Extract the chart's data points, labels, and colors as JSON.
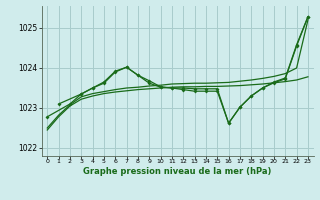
{
  "title": "Graphe pression niveau de la mer (hPa)",
  "bg_color": "#d0ecec",
  "grid_color": "#a8cccc",
  "line_color": "#1a6b1a",
  "xlim": [
    -0.5,
    23.5
  ],
  "ylim": [
    1021.8,
    1025.55
  ],
  "yticks": [
    1022,
    1023,
    1024,
    1025
  ],
  "xticks": [
    0,
    1,
    2,
    3,
    4,
    5,
    6,
    7,
    8,
    9,
    10,
    11,
    12,
    13,
    14,
    15,
    16,
    17,
    18,
    19,
    20,
    21,
    22,
    23
  ],
  "series1_x": [
    0,
    1,
    2,
    3,
    4,
    5,
    6,
    7,
    8,
    9,
    10,
    11,
    12,
    13,
    14,
    15,
    16,
    17,
    18,
    19,
    20,
    21,
    22,
    23
  ],
  "series1_y": [
    1022.45,
    1022.78,
    1023.05,
    1023.22,
    1023.3,
    1023.36,
    1023.4,
    1023.43,
    1023.46,
    1023.48,
    1023.5,
    1023.52,
    1023.53,
    1023.53,
    1023.54,
    1023.54,
    1023.55,
    1023.56,
    1023.58,
    1023.6,
    1023.63,
    1023.66,
    1023.7,
    1023.78
  ],
  "series2_x": [
    0,
    1,
    2,
    3,
    4,
    5,
    6,
    7,
    8,
    9,
    10,
    11,
    12,
    13,
    14,
    15,
    16,
    17,
    18,
    19,
    20,
    21,
    22,
    23
  ],
  "series2_y": [
    1022.5,
    1022.82,
    1023.08,
    1023.28,
    1023.36,
    1023.41,
    1023.46,
    1023.5,
    1023.52,
    1023.55,
    1023.57,
    1023.6,
    1023.61,
    1023.62,
    1023.62,
    1023.63,
    1023.64,
    1023.67,
    1023.7,
    1023.74,
    1023.79,
    1023.86,
    1024.0,
    1025.2
  ],
  "series3_x": [
    0,
    2,
    3,
    4,
    5,
    6,
    7,
    8,
    9,
    10,
    11,
    12,
    13,
    14,
    15,
    16,
    17,
    18,
    19,
    20,
    21,
    22,
    23
  ],
  "series3_y": [
    1022.78,
    1023.1,
    1023.35,
    1023.5,
    1023.65,
    1023.92,
    1024.02,
    1023.82,
    1023.62,
    1023.52,
    1023.5,
    1023.5,
    1023.48,
    1023.48,
    1023.48,
    1022.62,
    1023.02,
    1023.3,
    1023.5,
    1023.65,
    1023.75,
    1024.58,
    1025.28
  ],
  "series4_x": [
    1,
    3,
    4,
    5,
    6,
    7,
    8,
    9,
    10,
    11,
    12,
    13,
    14,
    15,
    16,
    17,
    18,
    19,
    20,
    21,
    22,
    23
  ],
  "series4_y": [
    1023.1,
    1023.35,
    1023.5,
    1023.62,
    1023.9,
    1024.02,
    1023.82,
    1023.68,
    1023.53,
    1023.5,
    1023.46,
    1023.42,
    1023.42,
    1023.42,
    1022.62,
    1023.02,
    1023.3,
    1023.5,
    1023.63,
    1023.73,
    1024.55,
    1025.28
  ]
}
